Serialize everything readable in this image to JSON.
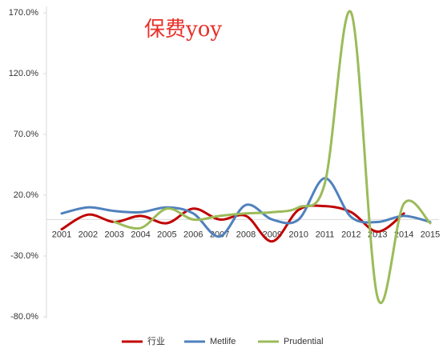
{
  "chart_data": {
    "type": "line",
    "title": "保费yoy",
    "categories": [
      "2001",
      "2002",
      "2003",
      "2004",
      "2005",
      "2006",
      "2007",
      "2008",
      "2009",
      "2010",
      "2011",
      "2012",
      "2013",
      "2014",
      "2015"
    ],
    "series": [
      {
        "name": "行业",
        "color": "#c00000",
        "values": [
          -8,
          4,
          -2,
          3,
          -3,
          9,
          0,
          3,
          -18,
          8,
          11,
          6,
          -10,
          5,
          null
        ]
      },
      {
        "name": "Metlife",
        "color": "#4f81bd",
        "values": [
          5,
          10,
          7,
          6,
          10,
          5,
          -14,
          12,
          0,
          0,
          34,
          2,
          -2,
          3,
          -2
        ]
      },
      {
        "name": "Prudential",
        "color": "#9bbb59",
        "values": [
          null,
          null,
          -2,
          -7,
          9,
          0,
          3,
          5,
          6,
          10,
          30,
          170,
          -64,
          13,
          -3
        ]
      }
    ],
    "ylim": [
      -80,
      170
    ],
    "yticks": [
      {
        "value": -80,
        "label": "-80.0%"
      },
      {
        "value": -30,
        "label": "-30.0%"
      },
      {
        "value": 20,
        "label": "20.0%"
      },
      {
        "value": 70,
        "label": "70.0%"
      },
      {
        "value": 120,
        "label": "120.0%"
      },
      {
        "value": 170,
        "label": "170.0%"
      }
    ],
    "legend": "bottom"
  }
}
